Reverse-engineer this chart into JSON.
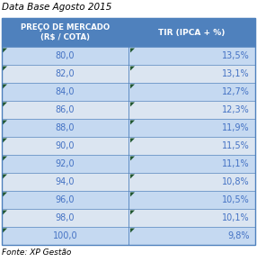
{
  "title": "Data Base Agosto 2015",
  "col1_header": "PREÇO DE MERCADO\n(R$ / COTA)",
  "col2_header": "TIR (IPCA + %)",
  "rows": [
    [
      "80,0",
      "13,5%"
    ],
    [
      "82,0",
      "13,1%"
    ],
    [
      "84,0",
      "12,7%"
    ],
    [
      "86,0",
      "12,3%"
    ],
    [
      "88,0",
      "11,9%"
    ],
    [
      "90,0",
      "11,5%"
    ],
    [
      "92,0",
      "11,1%"
    ],
    [
      "94,0",
      "10,8%"
    ],
    [
      "96,0",
      "10,5%"
    ],
    [
      "98,0",
      "10,1%"
    ],
    [
      "100,0",
      "9,8%"
    ]
  ],
  "footer": "Fonte: XP Gestão",
  "header_bg": "#4F81BD",
  "header_text": "#FFFFFF",
  "row_bg_dark": "#C5D9F1",
  "row_bg_light": "#DBE5F1",
  "row_text": "#4472C4",
  "title_color": "#000000",
  "footer_color": "#000000",
  "marker_color": "#215732",
  "border_color": "#4F81BD",
  "figure_bg": "#FFFFFF"
}
